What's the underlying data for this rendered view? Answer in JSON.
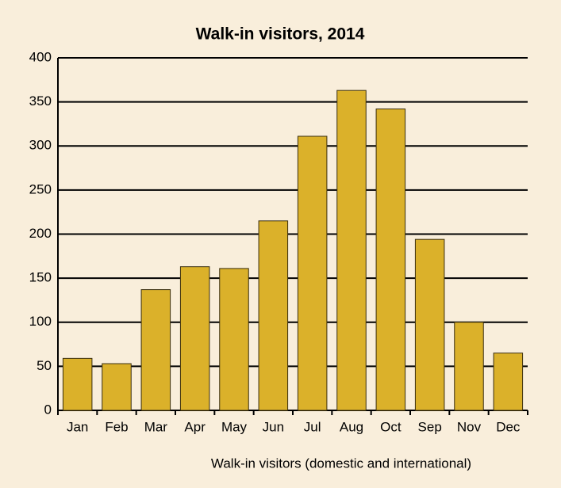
{
  "chart_data": {
    "type": "bar",
    "title": "Walk-in visitors, 2014",
    "x_label": "Walk-in visitors (domestic and international)",
    "categories": [
      "Jan",
      "Feb",
      "Mar",
      "Apr",
      "May",
      "Jun",
      "Jul",
      "Aug",
      "Oct",
      "Sep",
      "Nov",
      "Dec"
    ],
    "values": [
      59,
      53,
      137,
      163,
      161,
      215,
      311,
      363,
      342,
      194,
      100,
      65
    ],
    "color": "#dbb12a",
    "ylim": [
      0,
      400
    ],
    "yticks": [
      0,
      50,
      100,
      150,
      200,
      250,
      300,
      350,
      400
    ],
    "grid": true
  }
}
